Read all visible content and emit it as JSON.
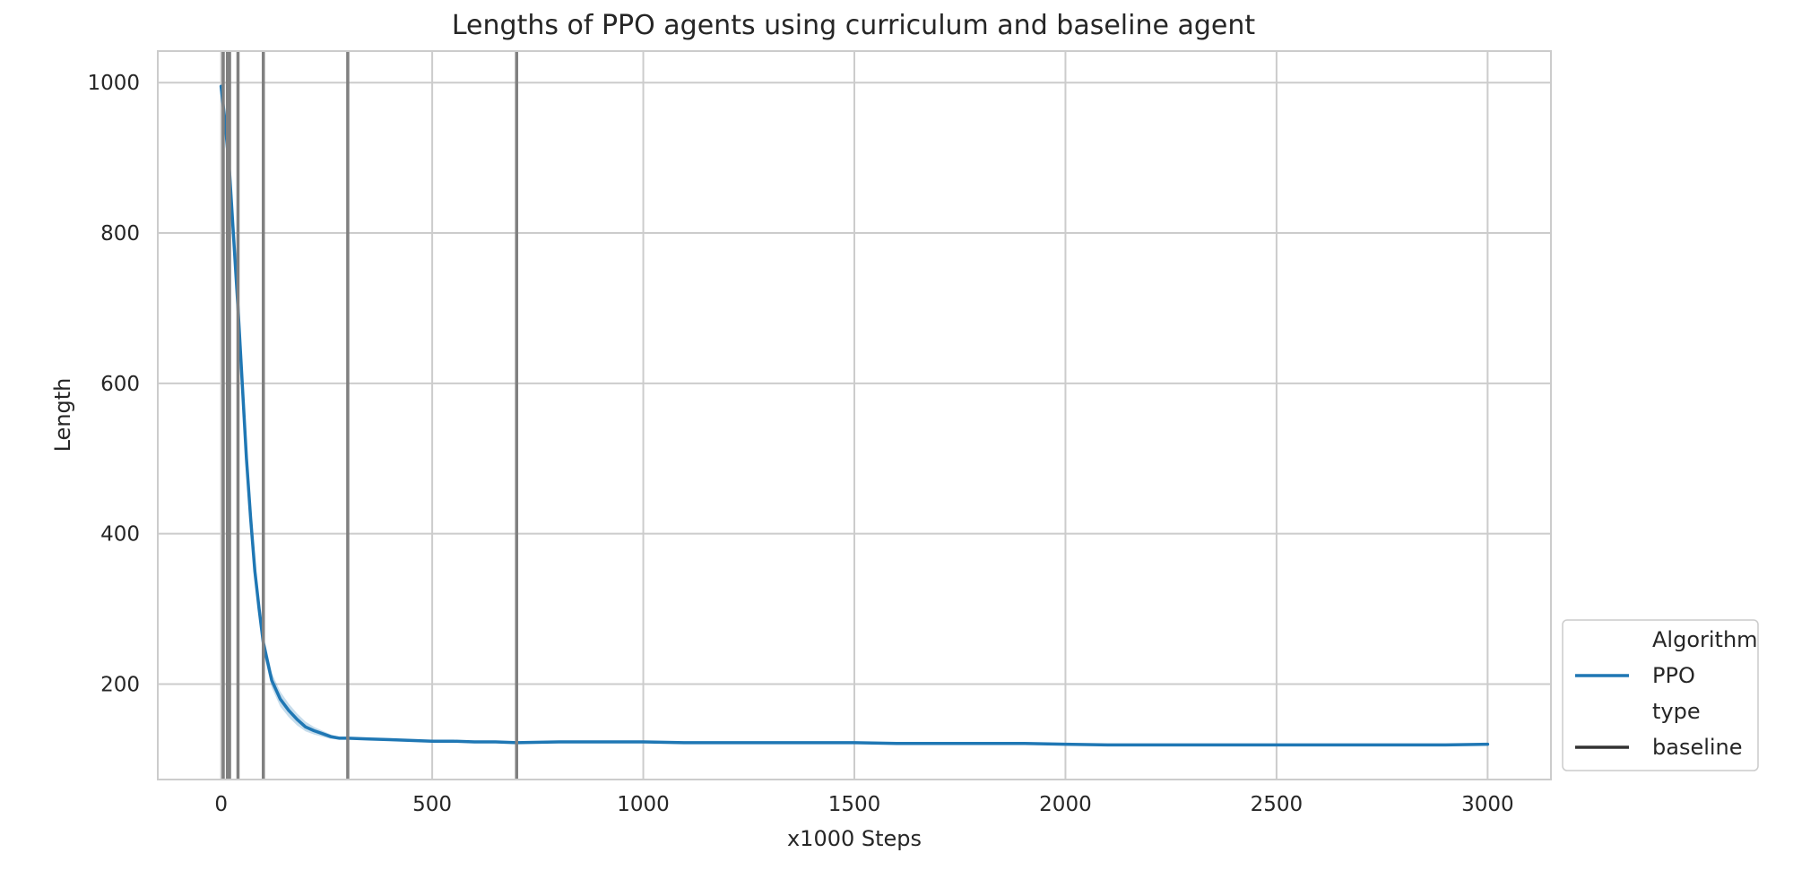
{
  "chart_data": {
    "type": "line",
    "title": "Lengths of PPO agents using curriculum and baseline agent",
    "xlabel": "x1000 Steps",
    "ylabel": "Length",
    "xlim": [
      -150,
      3150
    ],
    "ylim": [
      73,
      1042
    ],
    "xticks": [
      0,
      500,
      1000,
      1500,
      2000,
      2500,
      3000
    ],
    "yticks": [
      200,
      400,
      600,
      800,
      1000
    ],
    "grid": true,
    "legend": {
      "placement": "outside-lower-right",
      "entries": [
        {
          "label": "Algorithm",
          "kind": "header"
        },
        {
          "label": "PPO",
          "kind": "line",
          "color": "#1f77b4"
        },
        {
          "label": "type",
          "kind": "header"
        },
        {
          "label": "baseline",
          "kind": "line",
          "color": "#333333"
        }
      ]
    },
    "vlines": {
      "x": [
        5,
        15,
        20,
        40,
        100,
        300,
        700
      ],
      "color": "#808080"
    },
    "series": [
      {
        "name": "PPO",
        "color": "#1f77b4",
        "x": [
          0,
          10,
          20,
          30,
          40,
          50,
          60,
          70,
          80,
          90,
          100,
          120,
          140,
          160,
          180,
          200,
          220,
          240,
          260,
          280,
          300,
          350,
          400,
          450,
          500,
          550,
          600,
          650,
          700,
          800,
          900,
          1000,
          1100,
          1200,
          1300,
          1400,
          1500,
          1600,
          1700,
          1800,
          1900,
          2000,
          2100,
          2200,
          2300,
          2400,
          2500,
          2600,
          2700,
          2800,
          2900,
          3000
        ],
        "y": [
          995,
          945,
          880,
          790,
          700,
          600,
          500,
          420,
          350,
          300,
          255,
          205,
          180,
          165,
          153,
          143,
          138,
          134,
          130,
          128,
          128,
          127,
          126,
          125,
          124,
          124,
          123,
          123,
          122,
          123,
          123,
          123,
          122,
          122,
          122,
          122,
          122,
          121,
          121,
          121,
          121,
          120,
          119,
          119,
          119,
          119,
          119,
          119,
          119,
          119,
          119,
          120
        ],
        "band_low": [
          990,
          935,
          860,
          765,
          675,
          575,
          478,
          402,
          335,
          287,
          243,
          195,
          170,
          156,
          145,
          137,
          133,
          130,
          127,
          126,
          126,
          126,
          125,
          124,
          123,
          123,
          122,
          122,
          121,
          122,
          122,
          122,
          121,
          121,
          121,
          121,
          121,
          120,
          120,
          120,
          120,
          119,
          118,
          118,
          118,
          118,
          118,
          118,
          118,
          118,
          118,
          119
        ],
        "band_high": [
          998,
          955,
          900,
          815,
          725,
          625,
          522,
          438,
          365,
          313,
          267,
          215,
          190,
          174,
          161,
          150,
          143,
          138,
          133,
          130,
          130,
          128,
          127,
          126,
          125,
          125,
          124,
          124,
          123,
          124,
          124,
          124,
          123,
          123,
          123,
          123,
          123,
          122,
          122,
          122,
          122,
          121,
          120,
          120,
          120,
          120,
          120,
          120,
          120,
          120,
          120,
          121
        ]
      }
    ]
  }
}
